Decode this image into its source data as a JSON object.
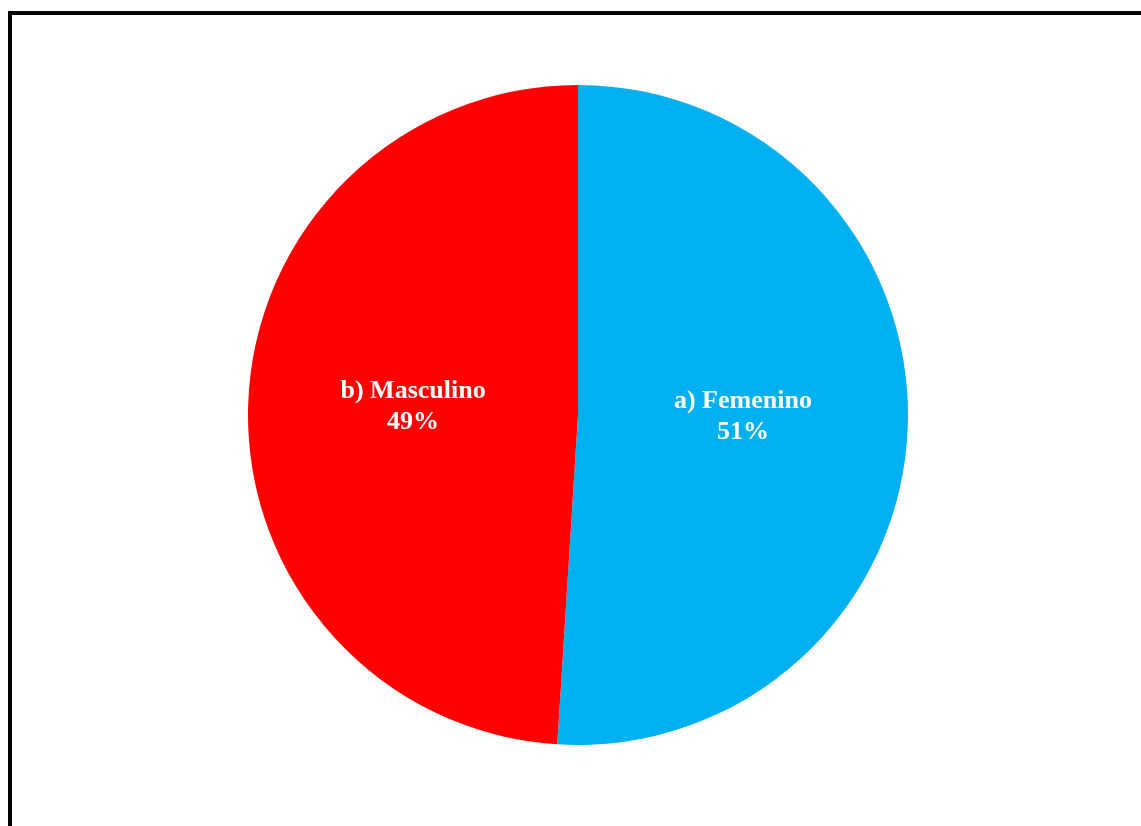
{
  "chart_data": {
    "type": "pie",
    "categories": [
      "a) Femenino",
      "b) Masculino"
    ],
    "values": [
      51,
      49
    ],
    "colors": [
      "#00b0f0",
      "#ff0000"
    ],
    "value_labels": [
      "51%",
      "49%"
    ]
  }
}
